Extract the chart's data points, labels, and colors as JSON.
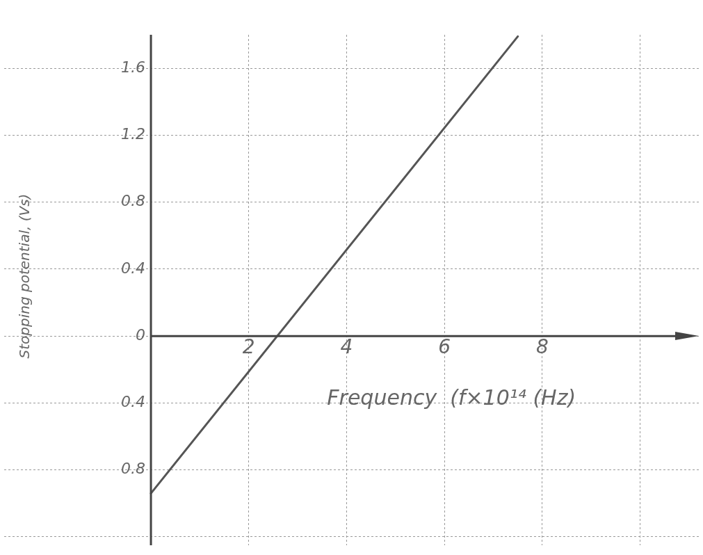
{
  "chart_data": {
    "type": "line",
    "xlabel": "Frequency  (f×10¹⁴ (Hz)",
    "ylabel": "Stopping potential, (Vs)",
    "x": [
      0,
      7.5
    ],
    "series": [
      {
        "color": "#555555",
        "values": [
          -0.94,
          1.79
        ]
      }
    ],
    "xlim": [
      -3,
      11.2
    ],
    "xticks": [
      {
        "value": 0,
        "label": null
      },
      2,
      4,
      6,
      8,
      {
        "value": 10,
        "label": null
      }
    ],
    "ylim": [
      -1.25,
      1.8
    ],
    "yticks": [
      {
        "value": -1.2,
        "label": null
      },
      {
        "value": -0.8,
        "label": "0.8"
      },
      {
        "value": -0.4,
        "label": "0.4"
      },
      0,
      0.4,
      0.8,
      1.2,
      1.6
    ],
    "grid": true,
    "legend": false,
    "marker": "none",
    "line_style": "solid"
  }
}
